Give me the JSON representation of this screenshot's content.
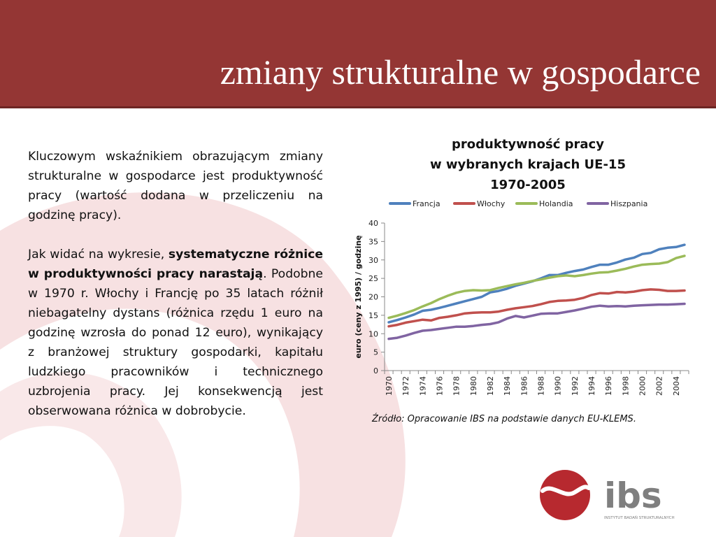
{
  "slide": {
    "title": "zmiany strukturalne w gospodarce",
    "colors": {
      "header": "#943634",
      "swirl": "#f7e1e2"
    }
  },
  "text": {
    "p1": "Kluczowym wskaźnikiem obrazującym zmiany strukturalne w gospodarce jest produktywność pracy (wartość dodana w przeliczeniu na godzinę pracy).",
    "p2_start": "Jak widać na wykresie, ",
    "p2_bold": "systematyczne różnice w produktywności pracy narastają",
    "p2_rest": ". Podobne w 1970 r. Włochy i Francję po 35 latach różnił niebagatelny dystans (różnica rzędu 1 euro na godzinę wzrosła do ponad 12 euro), wynikający z branżowej struktury gospodarki, kapitału ludzkiego pracowników i technicznego uzbrojenia pracy. Jej konsekwencją jest obserwowana różnica w dobrobycie."
  },
  "chart_data": {
    "type": "line",
    "title_lines": [
      "produktywność pracy",
      "w wybranych krajach UE-15",
      "1970-2005"
    ],
    "ylabel": "euro (ceny z 1995) / godzinę",
    "xlabel": "",
    "ylim": [
      0,
      40
    ],
    "yticks": [
      0,
      5,
      10,
      15,
      20,
      25,
      30,
      35,
      40
    ],
    "xticks": [
      1970,
      1972,
      1974,
      1976,
      1978,
      1980,
      1982,
      1984,
      1986,
      1988,
      1990,
      1992,
      1994,
      1996,
      1998,
      2000,
      2002,
      2004
    ],
    "legend_position": "top",
    "grid": false,
    "x": [
      1970,
      1971,
      1972,
      1973,
      1974,
      1975,
      1976,
      1977,
      1978,
      1979,
      1980,
      1981,
      1982,
      1983,
      1984,
      1985,
      1986,
      1987,
      1988,
      1989,
      1990,
      1991,
      1992,
      1993,
      1994,
      1995,
      1996,
      1997,
      1998,
      1999,
      2000,
      2001,
      2002,
      2003,
      2004,
      2005
    ],
    "series": [
      {
        "name": "Francja",
        "color": "#4f81bd",
        "values": [
          13.1,
          13.7,
          14.4,
          15.2,
          16.2,
          16.5,
          17.0,
          17.6,
          18.2,
          18.8,
          19.4,
          20.0,
          21.2,
          21.6,
          22.2,
          23.0,
          23.6,
          24.2,
          25.0,
          25.9,
          25.9,
          26.5,
          27.0,
          27.4,
          28.1,
          28.7,
          28.7,
          29.3,
          30.1,
          30.6,
          31.6,
          31.9,
          32.9,
          33.3,
          33.5,
          34.1
        ]
      },
      {
        "name": "Włochy",
        "color": "#c0504d",
        "values": [
          12.0,
          12.4,
          13.0,
          13.4,
          13.8,
          13.6,
          14.3,
          14.6,
          15.0,
          15.5,
          15.7,
          15.8,
          15.8,
          16.0,
          16.5,
          16.9,
          17.2,
          17.5,
          18.0,
          18.6,
          18.9,
          19.0,
          19.2,
          19.7,
          20.5,
          21.0,
          20.9,
          21.3,
          21.2,
          21.4,
          21.8,
          22.0,
          21.9,
          21.6,
          21.6,
          21.7
        ]
      },
      {
        "name": "Holandia",
        "color": "#9bbb59",
        "values": [
          14.3,
          14.9,
          15.6,
          16.4,
          17.4,
          18.3,
          19.4,
          20.3,
          21.1,
          21.6,
          21.8,
          21.7,
          21.8,
          22.4,
          22.9,
          23.4,
          23.8,
          24.3,
          24.7,
          25.2,
          25.6,
          25.8,
          25.6,
          25.9,
          26.3,
          26.6,
          26.7,
          27.1,
          27.6,
          28.2,
          28.7,
          28.9,
          29.0,
          29.4,
          30.5,
          31.1
        ]
      },
      {
        "name": "Hiszpania",
        "color": "#8064a2",
        "values": [
          8.6,
          8.9,
          9.5,
          10.2,
          10.8,
          11.0,
          11.3,
          11.6,
          11.9,
          11.9,
          12.1,
          12.4,
          12.6,
          13.1,
          14.1,
          14.8,
          14.4,
          14.9,
          15.4,
          15.5,
          15.5,
          15.9,
          16.3,
          16.8,
          17.3,
          17.6,
          17.4,
          17.5,
          17.4,
          17.6,
          17.7,
          17.8,
          17.9,
          17.9,
          18.0,
          18.1
        ]
      }
    ]
  },
  "source": "Źródło: Opracowanie IBS na podstawie danych EU-KLEMS.",
  "logo": {
    "text": "ibs",
    "subtitle": "INSTYTUT BADAŃ STRUKTURALNYCH"
  }
}
